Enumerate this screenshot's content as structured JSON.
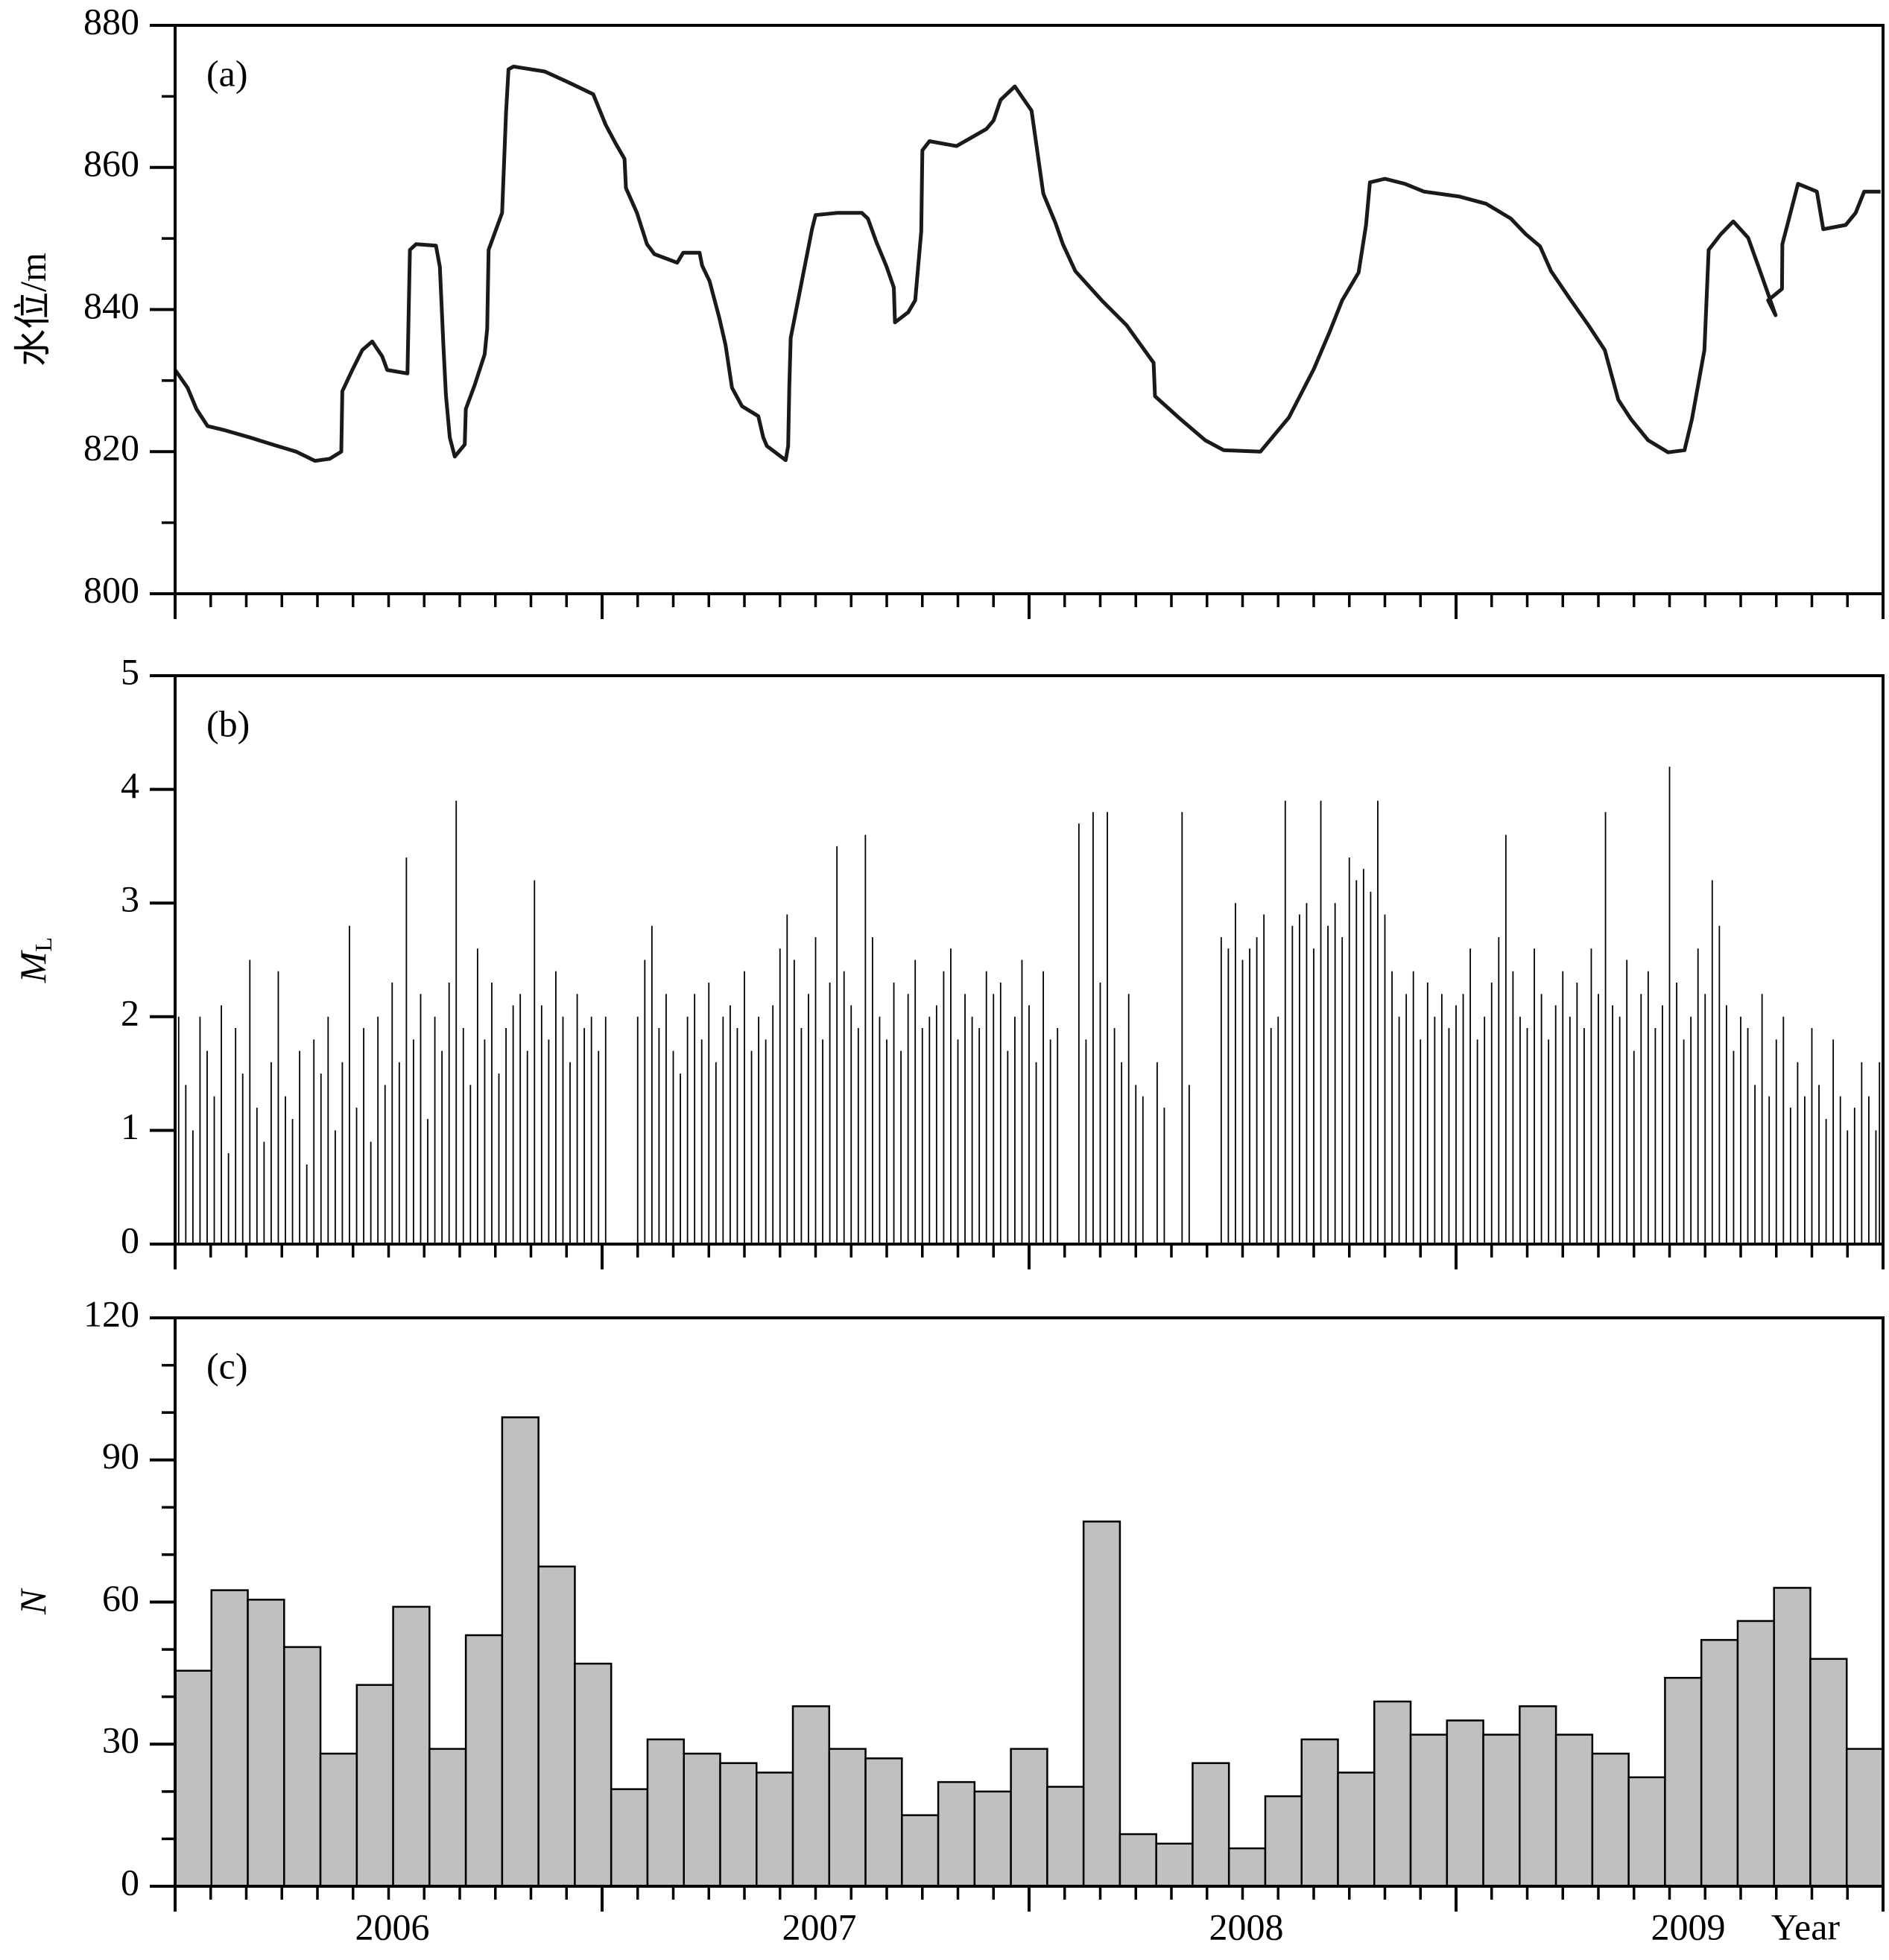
{
  "chart_data": [
    {
      "type": "line",
      "label": "(a)",
      "ylabel": "水位/m",
      "color": "#1a1a1a",
      "x": [
        0,
        0.35,
        0.6,
        0.91,
        1.4,
        2.1,
        2.74,
        3.4,
        3.93,
        4.35,
        4.67,
        4.7,
        4.98,
        5.26,
        5.54,
        5.82,
        5.96,
        6.53,
        6.6,
        6.77,
        7.33,
        7.44,
        7.54,
        7.61,
        7.72,
        7.86,
        8.14,
        8.17,
        8.42,
        8.7,
        8.77,
        8.81,
        9.19,
        9.3,
        9.37,
        9.51,
        10.39,
        11.09,
        11.75,
        12.1,
        12.39,
        12.63,
        12.67,
        12.98,
        13.26,
        13.47,
        14.11,
        14.28,
        14.74,
        14.81,
        15.02,
        15.3,
        15.47,
        15.65,
        15.93,
        16.39,
        16.53,
        16.63,
        17.16,
        17.23,
        17.26,
        17.3,
        17.9,
        18.0,
        18.6,
        19.3,
        19.47,
        19.7,
        19.99,
        20.2,
        20.23,
        20.6,
        20.8,
        20.97,
        21.0,
        21.2,
        21.96,
        22.8,
        23.0,
        23.2,
        23.6,
        24.07,
        24.4,
        24.74,
        24.95,
        25.3,
        26.04,
        26.74,
        27.5,
        27.54,
        28.25,
        28.95,
        29.47,
        30.5,
        31.3,
        32.0,
        32.45,
        32.8,
        33.26,
        33.47,
        33.58,
        34.0,
        34.56,
        35.1,
        36.1,
        36.84,
        37.54,
        37.96,
        38.36,
        38.67,
        39.2,
        39.72,
        40.18,
        40.56,
        40.91,
        41.4,
        41.96,
        42.42,
        42.63,
        42.98,
        43.1,
        43.44,
        43.79,
        44.21,
        44.56,
        44.98,
        44.77,
        45.16,
        45.17,
        45.61,
        46.14,
        46.32,
        46.95,
        47.23,
        47.47,
        47.93
      ],
      "values": [
        831.5,
        829,
        826,
        823.6,
        823,
        822,
        821,
        820,
        818.7,
        819,
        820,
        828.5,
        831.5,
        834.3,
        835.5,
        833.4,
        831.5,
        831,
        848.4,
        849.2,
        849,
        846,
        835,
        828,
        822,
        819.3,
        821,
        826,
        829.4,
        833.7,
        837.3,
        848.4,
        853.6,
        867.7,
        873.8,
        874.2,
        873.5,
        871.9,
        870.3,
        866,
        863.3,
        861.2,
        857.1,
        853.6,
        849.2,
        847.8,
        846.6,
        848,
        848,
        846.2,
        844,
        838.7,
        835,
        829,
        826.4,
        825,
        822,
        820.8,
        818.8,
        820.8,
        829,
        836,
        851.3,
        853.3,
        853.6,
        853.6,
        852.8,
        849.6,
        846.1,
        843.1,
        838.2,
        839.6,
        841.3,
        851,
        862.4,
        863.7,
        863,
        865.4,
        866.6,
        869.5,
        871.4,
        868,
        856.3,
        852.2,
        849.2,
        845.4,
        841.3,
        837.8,
        832.5,
        827.8,
        824.6,
        821.6,
        820.2,
        820,
        824.8,
        831.6,
        836.9,
        841.3,
        845.2,
        851.9,
        857.9,
        858.4,
        857.7,
        856.6,
        855.9,
        854.9,
        852.8,
        850.6,
        848.9,
        845.4,
        841.5,
        837.8,
        834.3,
        827.3,
        824.6,
        821.6,
        819.9,
        820.2,
        824.6,
        834.3,
        848.4,
        850.6,
        852.4,
        850.1,
        845.2,
        839.2,
        841.3,
        842.9,
        849.2,
        857.7,
        856.6,
        851.3,
        851.9,
        853.6,
        856.6,
        856.6
      ],
      "xlim": [
        0,
        48
      ],
      "xticks": [
        0,
        12,
        24,
        36,
        48
      ],
      "xminor_step": 1,
      "ylim": [
        800,
        880
      ],
      "yticks": [
        800,
        820,
        840,
        860,
        880
      ],
      "yminor_step": 10
    },
    {
      "type": "stem",
      "label": "(b)",
      "ylabel": "M",
      "ylabel_sub": "L",
      "color": "#000000",
      "x": [
        0.1,
        0.3,
        0.5,
        0.7,
        0.9,
        1.1,
        1.3,
        1.5,
        1.7,
        1.9,
        2.1,
        2.3,
        2.5,
        2.7,
        2.9,
        3.1,
        3.3,
        3.5,
        3.7,
        3.9,
        4.1,
        4.3,
        4.5,
        4.7,
        4.9,
        5.1,
        5.3,
        5.5,
        5.7,
        5.9,
        6.1,
        6.3,
        6.5,
        6.7,
        6.9,
        7.1,
        7.3,
        7.5,
        7.7,
        7.9,
        8.1,
        8.3,
        8.5,
        8.7,
        8.9,
        9.1,
        9.3,
        9.5,
        9.7,
        9.9,
        10.1,
        10.3,
        10.5,
        10.7,
        10.9,
        11.1,
        11.3,
        11.5,
        11.7,
        11.9,
        12.1,
        13.0,
        13.2,
        13.4,
        13.6,
        13.8,
        14.0,
        14.2,
        14.4,
        14.6,
        14.8,
        15.0,
        15.2,
        15.4,
        15.6,
        15.8,
        16.0,
        16.2,
        16.4,
        16.6,
        16.8,
        17.0,
        17.2,
        17.4,
        17.6,
        17.8,
        18.0,
        18.2,
        18.4,
        18.6,
        18.8,
        19.0,
        19.2,
        19.4,
        19.6,
        19.8,
        20.0,
        20.2,
        20.4,
        20.6,
        20.8,
        21.0,
        21.2,
        21.4,
        21.6,
        21.8,
        22.0,
        22.2,
        22.4,
        22.6,
        22.8,
        23.0,
        23.2,
        23.4,
        23.6,
        23.8,
        24.0,
        24.2,
        24.4,
        24.6,
        24.8,
        25.4,
        25.6,
        25.8,
        26.0,
        26.2,
        26.4,
        26.6,
        26.8,
        27.0,
        27.2,
        27.6,
        27.8,
        28.3,
        28.5,
        29.4,
        29.6,
        29.8,
        30.0,
        30.2,
        30.4,
        30.6,
        30.8,
        31.0,
        31.2,
        31.4,
        31.6,
        31.8,
        32.0,
        32.2,
        32.4,
        32.6,
        32.8,
        33.0,
        33.2,
        33.4,
        33.6,
        33.8,
        34.0,
        34.2,
        34.4,
        34.6,
        34.8,
        35.0,
        35.2,
        35.4,
        35.6,
        35.8,
        36.0,
        36.2,
        36.4,
        36.6,
        36.8,
        37.0,
        37.2,
        37.4,
        37.6,
        37.8,
        38.0,
        38.2,
        38.4,
        38.6,
        38.8,
        39.0,
        39.2,
        39.4,
        39.6,
        39.8,
        40.0,
        40.2,
        40.4,
        40.6,
        40.8,
        41.0,
        41.2,
        41.4,
        41.6,
        41.8,
        42.0,
        42.2,
        42.4,
        42.6,
        42.8,
        43.0,
        43.2,
        43.4,
        43.6,
        43.8,
        44.0,
        44.2,
        44.4,
        44.6,
        44.8,
        45.0,
        45.2,
        45.4,
        45.6,
        45.8,
        46.0,
        46.2,
        46.4,
        46.6,
        46.8,
        47.0,
        47.2,
        47.4,
        47.6,
        47.8,
        47.9
      ],
      "values": [
        2.0,
        1.4,
        1.0,
        2.0,
        1.7,
        1.3,
        2.1,
        0.8,
        1.9,
        1.5,
        2.5,
        1.2,
        0.9,
        1.6,
        2.4,
        1.3,
        1.1,
        1.7,
        0.7,
        1.8,
        1.5,
        2.0,
        1.0,
        1.6,
        2.8,
        1.2,
        1.9,
        0.9,
        2.0,
        1.4,
        2.3,
        1.6,
        3.4,
        1.8,
        2.2,
        1.1,
        2.0,
        1.7,
        2.3,
        3.9,
        1.9,
        1.4,
        2.6,
        1.8,
        2.3,
        1.5,
        1.9,
        2.1,
        2.2,
        1.7,
        3.2,
        2.1,
        1.8,
        2.4,
        2.0,
        1.6,
        2.2,
        1.9,
        2.0,
        1.7,
        2.0,
        2.0,
        2.5,
        2.8,
        1.9,
        2.2,
        1.7,
        1.5,
        2.0,
        2.2,
        1.8,
        2.3,
        1.6,
        2.0,
        2.1,
        1.9,
        2.4,
        1.7,
        2.0,
        1.8,
        2.1,
        2.6,
        2.9,
        2.5,
        1.9,
        2.2,
        2.7,
        1.8,
        2.3,
        3.5,
        2.4,
        2.1,
        1.9,
        3.6,
        2.7,
        2.0,
        1.8,
        2.3,
        1.7,
        2.2,
        2.5,
        1.9,
        2.0,
        2.1,
        2.4,
        2.6,
        1.8,
        2.2,
        2.0,
        1.9,
        2.4,
        2.2,
        2.3,
        1.7,
        2.0,
        2.5,
        2.1,
        1.6,
        2.4,
        1.8,
        1.9,
        3.7,
        1.8,
        3.8,
        2.3,
        3.8,
        1.9,
        1.6,
        2.2,
        1.4,
        1.3,
        1.6,
        1.2,
        3.8,
        1.4,
        2.7,
        2.6,
        3.0,
        2.5,
        2.6,
        2.7,
        2.9,
        1.9,
        2.0,
        3.9,
        2.8,
        2.9,
        3.0,
        2.6,
        3.9,
        2.8,
        3.0,
        2.7,
        3.4,
        3.2,
        3.3,
        3.1,
        3.9,
        2.9,
        2.4,
        2.0,
        2.2,
        2.4,
        1.8,
        2.3,
        2.0,
        2.2,
        1.9,
        2.1,
        2.2,
        2.6,
        1.8,
        2.0,
        2.3,
        2.7,
        3.6,
        2.4,
        2.0,
        1.9,
        2.6,
        2.2,
        1.8,
        2.1,
        2.4,
        2.0,
        2.3,
        1.9,
        2.6,
        2.2,
        3.8,
        2.1,
        2.0,
        2.5,
        1.7,
        2.2,
        2.4,
        1.9,
        2.1,
        4.2,
        2.3,
        1.8,
        2.0,
        2.6,
        2.2,
        3.2,
        2.8,
        2.1,
        1.7,
        2.0,
        1.9,
        1.4,
        2.2,
        1.3,
        1.8,
        2.0,
        1.2,
        1.6,
        1.3,
        1.9,
        1.4,
        1.1,
        1.8,
        1.3,
        1.0,
        1.2,
        1.6,
        1.3,
        1.0,
        1.6
      ],
      "xlim": [
        0,
        48
      ],
      "xticks": [
        0,
        12,
        24,
        36,
        48
      ],
      "xminor_step": 1,
      "ylim": [
        0,
        5
      ],
      "yticks": [
        0,
        1,
        2,
        3,
        4,
        5
      ]
    },
    {
      "type": "bar",
      "label": "(c)",
      "ylabel": "N",
      "color": "#c0c0c0",
      "values": [
        45.5,
        62.5,
        60.5,
        50.5,
        28,
        42.5,
        59,
        29,
        53,
        99,
        67.5,
        47,
        20.5,
        31,
        28,
        26,
        24,
        38,
        29,
        27,
        15,
        22,
        20,
        29,
        21,
        77,
        11,
        9,
        26,
        8,
        19,
        31,
        24,
        39,
        32,
        35,
        32,
        38,
        32,
        28,
        23,
        44,
        52,
        56,
        63,
        48,
        29
      ],
      "xlim": [
        0,
        48
      ],
      "xticks": [
        0,
        12,
        24,
        36,
        48
      ],
      "xminor_step": 1,
      "years": [
        "2006",
        "2007",
        "2008",
        "2009"
      ],
      "xlabel": "Year",
      "ylim": [
        0,
        120
      ],
      "yticks": [
        0,
        30,
        60,
        90,
        120
      ],
      "yminor_step": 10
    }
  ]
}
